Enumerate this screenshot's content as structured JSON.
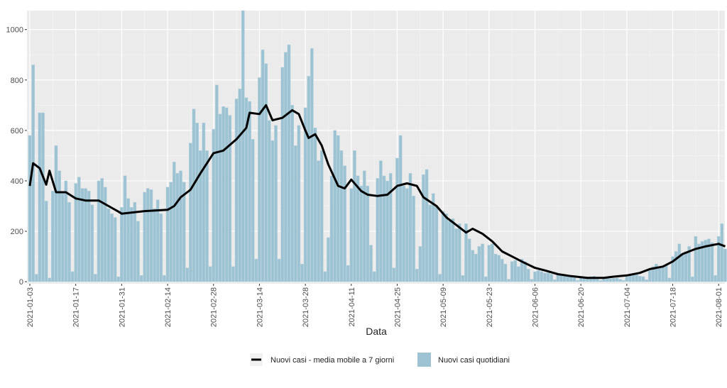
{
  "chart_data": {
    "type": "bar",
    "title": "",
    "xlabel": "Data",
    "ylabel": "",
    "ylim": [
      0,
      1075
    ],
    "yticks": [
      0,
      200,
      400,
      600,
      800,
      1000
    ],
    "grid": true,
    "legend_position": "bottom",
    "start_date": "2021-01-03",
    "xtick_labels": [
      "2021-01-03",
      "2021-01-17",
      "2021-01-31",
      "2021-02-14",
      "2021-02-28",
      "2021-03-14",
      "2021-03-28",
      "2021-04-11",
      "2021-04-25",
      "2021-05-09",
      "2021-05-23",
      "2021-06-06",
      "2021-06-20",
      "2021-07-04",
      "2021-07-18",
      "2021-08-01"
    ],
    "series": [
      {
        "name": "Nuovi casi quotidiani",
        "kind": "bar",
        "color": "#9dc3d3",
        "values": [
          580,
          860,
          30,
          670,
          670,
          320,
          15,
          360,
          540,
          440,
          350,
          400,
          315,
          40,
          390,
          415,
          370,
          370,
          360,
          305,
          30,
          400,
          410,
          375,
          290,
          270,
          255,
          20,
          295,
          420,
          330,
          295,
          315,
          240,
          25,
          355,
          370,
          365,
          290,
          325,
          270,
          25,
          375,
          395,
          475,
          430,
          440,
          395,
          55,
          550,
          685,
          630,
          520,
          630,
          520,
          60,
          605,
          780,
          665,
          695,
          690,
          660,
          60,
          725,
          765,
          1075,
          730,
          715,
          565,
          90,
          810,
          920,
          865,
          640,
          560,
          620,
          90,
          850,
          910,
          940,
          700,
          540,
          620,
          70,
          690,
          815,
          925,
          610,
          480,
          520,
          40,
          175,
          420,
          600,
          580,
          520,
          460,
          65,
          370,
          520,
          420,
          380,
          440,
          380,
          145,
          40,
          410,
          480,
          420,
          400,
          430,
          55,
          490,
          580,
          380,
          370,
          430,
          340,
          50,
          140,
          425,
          445,
          305,
          350,
          300,
          30,
          280,
          270,
          240,
          250,
          210,
          230,
          25,
          230,
          170,
          125,
          110,
          140,
          150,
          20,
          145,
          150,
          110,
          105,
          90,
          70,
          10,
          80,
          85,
          60,
          90,
          80,
          50,
          10,
          40,
          45,
          40,
          35,
          35,
          30,
          8,
          30,
          28,
          25,
          22,
          20,
          18,
          5,
          20,
          18,
          15,
          20,
          22,
          15,
          5,
          15,
          18,
          12,
          14,
          15,
          10,
          5,
          20,
          25,
          30,
          28,
          22,
          20,
          8,
          45,
          60,
          70,
          55,
          60,
          65,
          15,
          100,
          120,
          150,
          110,
          120,
          140,
          20,
          180,
          150,
          160,
          165,
          170,
          155,
          25,
          180,
          230,
          130
        ]
      },
      {
        "name": "Nuovi casi - media mobile a 7 giorni",
        "kind": "line",
        "color": "#000000",
        "points": [
          [
            0,
            380
          ],
          [
            1,
            470
          ],
          [
            3,
            450
          ],
          [
            5,
            385
          ],
          [
            6,
            440
          ],
          [
            8,
            355
          ],
          [
            11,
            355
          ],
          [
            14,
            330
          ],
          [
            17,
            322
          ],
          [
            21,
            322
          ],
          [
            24,
            300
          ],
          [
            27,
            278
          ],
          [
            28,
            270
          ],
          [
            35,
            280
          ],
          [
            42,
            285
          ],
          [
            44,
            300
          ],
          [
            46,
            335
          ],
          [
            49,
            365
          ],
          [
            52,
            430
          ],
          [
            56,
            510
          ],
          [
            59,
            520
          ],
          [
            63,
            565
          ],
          [
            66,
            610
          ],
          [
            67,
            670
          ],
          [
            70,
            665
          ],
          [
            72,
            700
          ],
          [
            74,
            640
          ],
          [
            77,
            650
          ],
          [
            80,
            680
          ],
          [
            82,
            665
          ],
          [
            84,
            600
          ],
          [
            85,
            570
          ],
          [
            87,
            585
          ],
          [
            89,
            540
          ],
          [
            91,
            465
          ],
          [
            94,
            380
          ],
          [
            96,
            370
          ],
          [
            98,
            405
          ],
          [
            101,
            360
          ],
          [
            103,
            345
          ],
          [
            106,
            340
          ],
          [
            109,
            345
          ],
          [
            112,
            380
          ],
          [
            115,
            390
          ],
          [
            118,
            380
          ],
          [
            120,
            335
          ],
          [
            124,
            300
          ],
          [
            127,
            255
          ],
          [
            129,
            235
          ],
          [
            133,
            195
          ],
          [
            135,
            210
          ],
          [
            138,
            190
          ],
          [
            141,
            160
          ],
          [
            144,
            120
          ],
          [
            147,
            100
          ],
          [
            150,
            80
          ],
          [
            154,
            55
          ],
          [
            157,
            45
          ],
          [
            161,
            30
          ],
          [
            165,
            22
          ],
          [
            170,
            15
          ],
          [
            175,
            15
          ],
          [
            178,
            20
          ],
          [
            182,
            25
          ],
          [
            186,
            35
          ],
          [
            189,
            50
          ],
          [
            193,
            60
          ],
          [
            196,
            80
          ],
          [
            199,
            110
          ],
          [
            203,
            130
          ],
          [
            206,
            140
          ],
          [
            210,
            150
          ],
          [
            212,
            140
          ]
        ]
      }
    ]
  },
  "legend": {
    "line_label": "Nuovi casi - media mobile a 7 giorni",
    "bar_label": "Nuovi casi quotidiani"
  }
}
